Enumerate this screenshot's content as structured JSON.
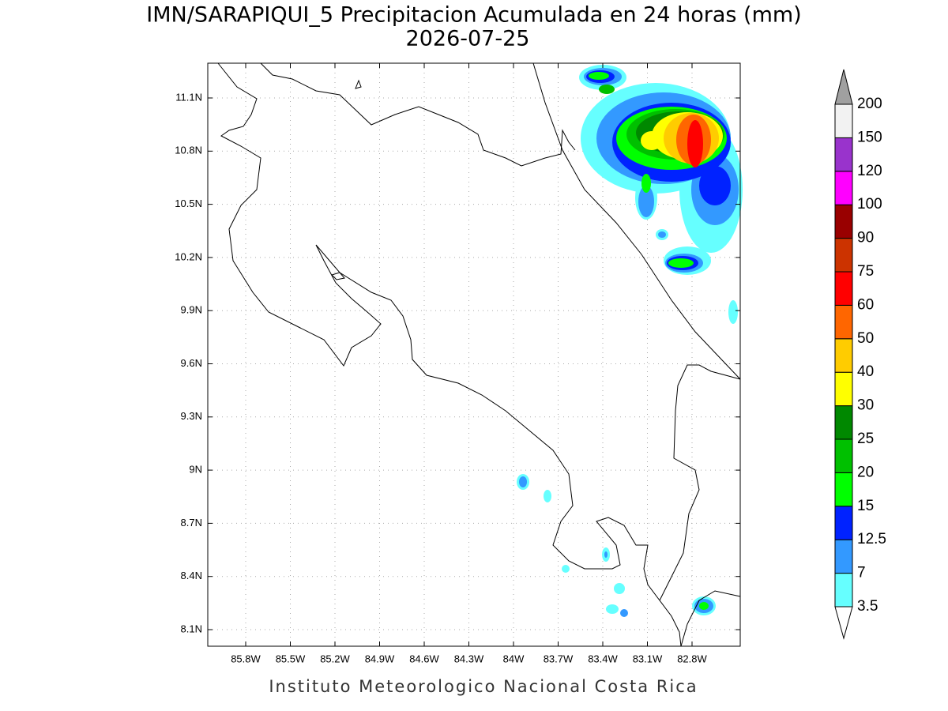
{
  "title": "IMN/SARAPIQUI_5 Precipitacion Acumulada en 24 horas (mm)",
  "date": "2026-07-25",
  "map": {
    "lon_labels": [
      "85.8W",
      "85.5W",
      "85.2W",
      "84.9W",
      "84.6W",
      "84.3W",
      "84W",
      "83.7W",
      "83.4W",
      "83.1W",
      "82.8W"
    ],
    "lat_labels": [
      "11.1N",
      "10.8N",
      "10.5N",
      "10.2N",
      "9.9N",
      "9.6N",
      "9.3N",
      "9N",
      "8.7N",
      "8.4N",
      "8.1N"
    ]
  },
  "colorbar": {
    "levels": [
      3.5,
      7,
      12.5,
      15,
      20,
      25,
      30,
      40,
      50,
      60,
      75,
      90,
      100,
      120,
      150,
      200
    ],
    "colors": [
      "#66ffff",
      "#3399ff",
      "#0022ff",
      "#00ff00",
      "#00c000",
      "#008800",
      "#ffff00",
      "#ffcc00",
      "#ff6600",
      "#ff0000",
      "#cc3300",
      "#990000",
      "#ff00ff",
      "#9933cc",
      "#f2f2f2"
    ],
    "under_color": "#ffffff",
    "over_color": "#a0a0a0"
  },
  "footer": "Instituto Meteorologico Nacional Costa Rica"
}
